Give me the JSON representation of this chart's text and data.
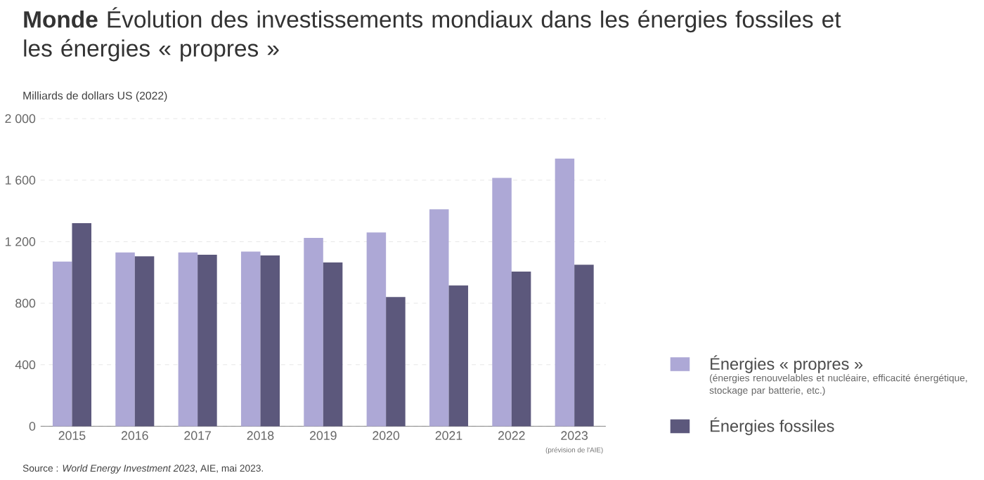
{
  "chart_data": {
    "type": "bar",
    "title": "**Monde** Évolution des investissements mondiaux dans les énergies fossiles et les énergies « propres »",
    "ylabel": "Milliards de dollars US (2022)",
    "categories": [
      "2015",
      "2016",
      "2017",
      "2018",
      "2019",
      "2020",
      "2021",
      "2022",
      "2023"
    ],
    "series": [
      {
        "name": "Énergies « propres »",
        "color": "#ada8d6",
        "values": [
          1070,
          1130,
          1130,
          1135,
          1225,
          1260,
          1410,
          1615,
          1740
        ]
      },
      {
        "name": "Énergies fossiles",
        "color": "#5c587c",
        "values": [
          1320,
          1105,
          1115,
          1110,
          1065,
          840,
          915,
          1005,
          1050
        ]
      }
    ],
    "ylim": [
      0,
      2000
    ],
    "yticks": [
      0,
      400,
      800,
      {
        "value": 1200,
        "label": "1 200"
      },
      {
        "value": 1600,
        "label": "1 600"
      },
      {
        "value": 2000,
        "label": "2 000"
      }
    ],
    "grid": "y",
    "legend": "right",
    "annotations": [
      "(énergies renouvelables et nucléaire, efficacité énergétique, stockage par batterie, etc.)",
      "(prévision de l'AIE)",
      "Source : *World Energy Investment 2023*, AIE, mai 2023."
    ]
  }
}
